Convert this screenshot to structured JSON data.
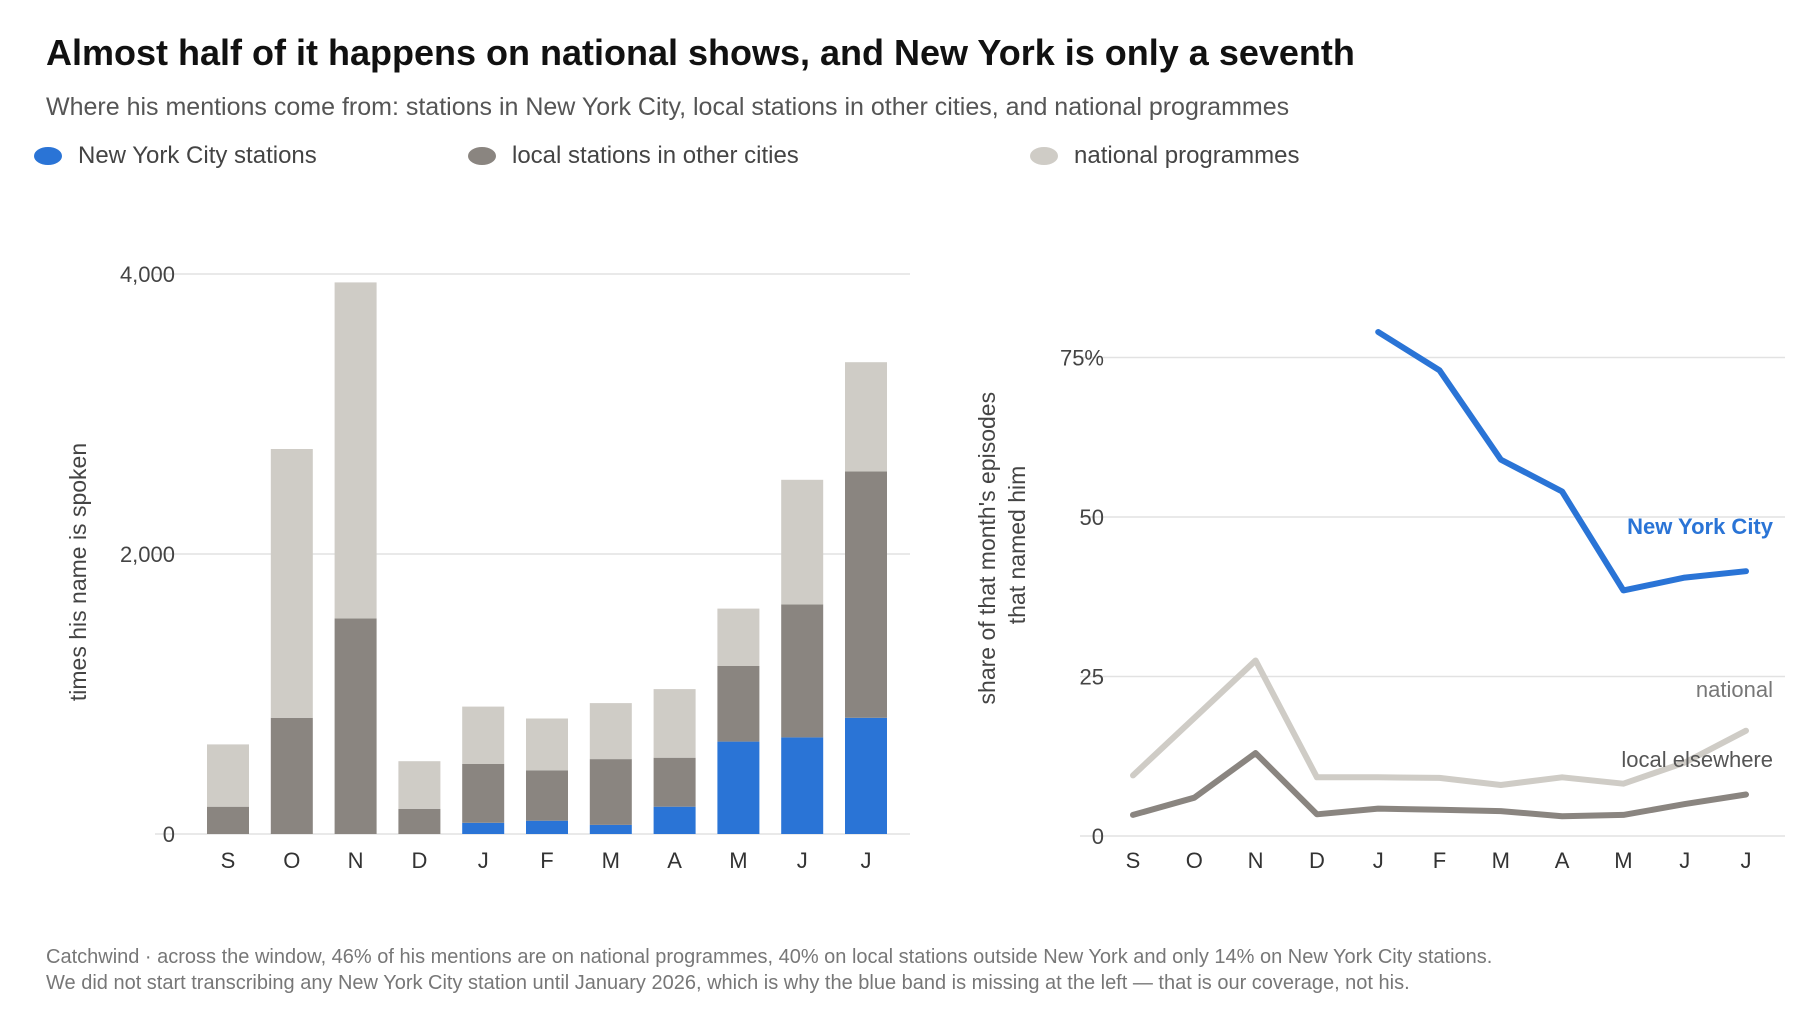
{
  "title": "Almost half of it happens on national shows, and New York is only a seventh",
  "subtitle": "Where his mentions come from: stations in New York City, local stations in other cities, and national programmes",
  "legend": [
    {
      "label": "New York City stations",
      "color": "#2a74d6"
    },
    {
      "label": "local stations in other cities",
      "color": "#8a8580"
    },
    {
      "label": "national programmes",
      "color": "#cfccc6"
    }
  ],
  "footnote": {
    "line1": "Catchwind · across the window, 46% of his mentions are on national programmes, 40% on local stations outside New York and only 14% on New York City stations.",
    "line2": "We did not start transcribing any New York City station until January 2026, which is why the blue band is missing at the left — that is our coverage, not his."
  },
  "chart_data": [
    {
      "type": "bar",
      "stacked": true,
      "categories": [
        "S",
        "O",
        "N",
        "D",
        "J",
        "F",
        "M",
        "A",
        "M",
        "J",
        "J"
      ],
      "ylabel": "times his name is spoken",
      "ylim": [
        0,
        4000
      ],
      "yticks": [
        0,
        2000,
        4000
      ],
      "ytick_labels": [
        "0",
        "2,000",
        "4,000"
      ],
      "grid": true,
      "series": [
        {
          "name": "New York City stations",
          "color": "#2a74d6",
          "values": [
            0,
            0,
            0,
            0,
            80,
            95,
            65,
            195,
            660,
            690,
            830
          ]
        },
        {
          "name": "local stations in other cities",
          "color": "#8a8580",
          "values": [
            195,
            830,
            1540,
            180,
            420,
            360,
            470,
            350,
            540,
            950,
            1760
          ]
        },
        {
          "name": "national programmes",
          "color": "#cfccc6",
          "values": [
            445,
            1920,
            2400,
            340,
            410,
            370,
            400,
            490,
            410,
            890,
            780
          ]
        }
      ]
    },
    {
      "type": "line",
      "categories": [
        "S",
        "O",
        "N",
        "D",
        "J",
        "F",
        "M",
        "A",
        "M",
        "J",
        "J"
      ],
      "ylabel": "share of that month's episodes that named him",
      "ylim": [
        0,
        80
      ],
      "yticks": [
        0,
        25,
        50,
        75
      ],
      "ytick_labels": [
        "0",
        "25",
        "50",
        "75%"
      ],
      "grid": true,
      "series": [
        {
          "name": "New York City",
          "color": "#2a74d6",
          "values": [
            null,
            null,
            null,
            null,
            79,
            73,
            59,
            54,
            38.5,
            40.5,
            41.5
          ]
        },
        {
          "name": "national",
          "color": "#cfccc6",
          "values": [
            9.5,
            18.5,
            27.5,
            9.2,
            9.2,
            9.1,
            8,
            9.2,
            8.2,
            11.5,
            16.5
          ]
        },
        {
          "name": "local elsewhere",
          "color": "#8a8580",
          "values": [
            3.3,
            6,
            13,
            3.4,
            4.3,
            4.1,
            3.9,
            3.1,
            3.3,
            5,
            6.5
          ]
        }
      ]
    }
  ]
}
